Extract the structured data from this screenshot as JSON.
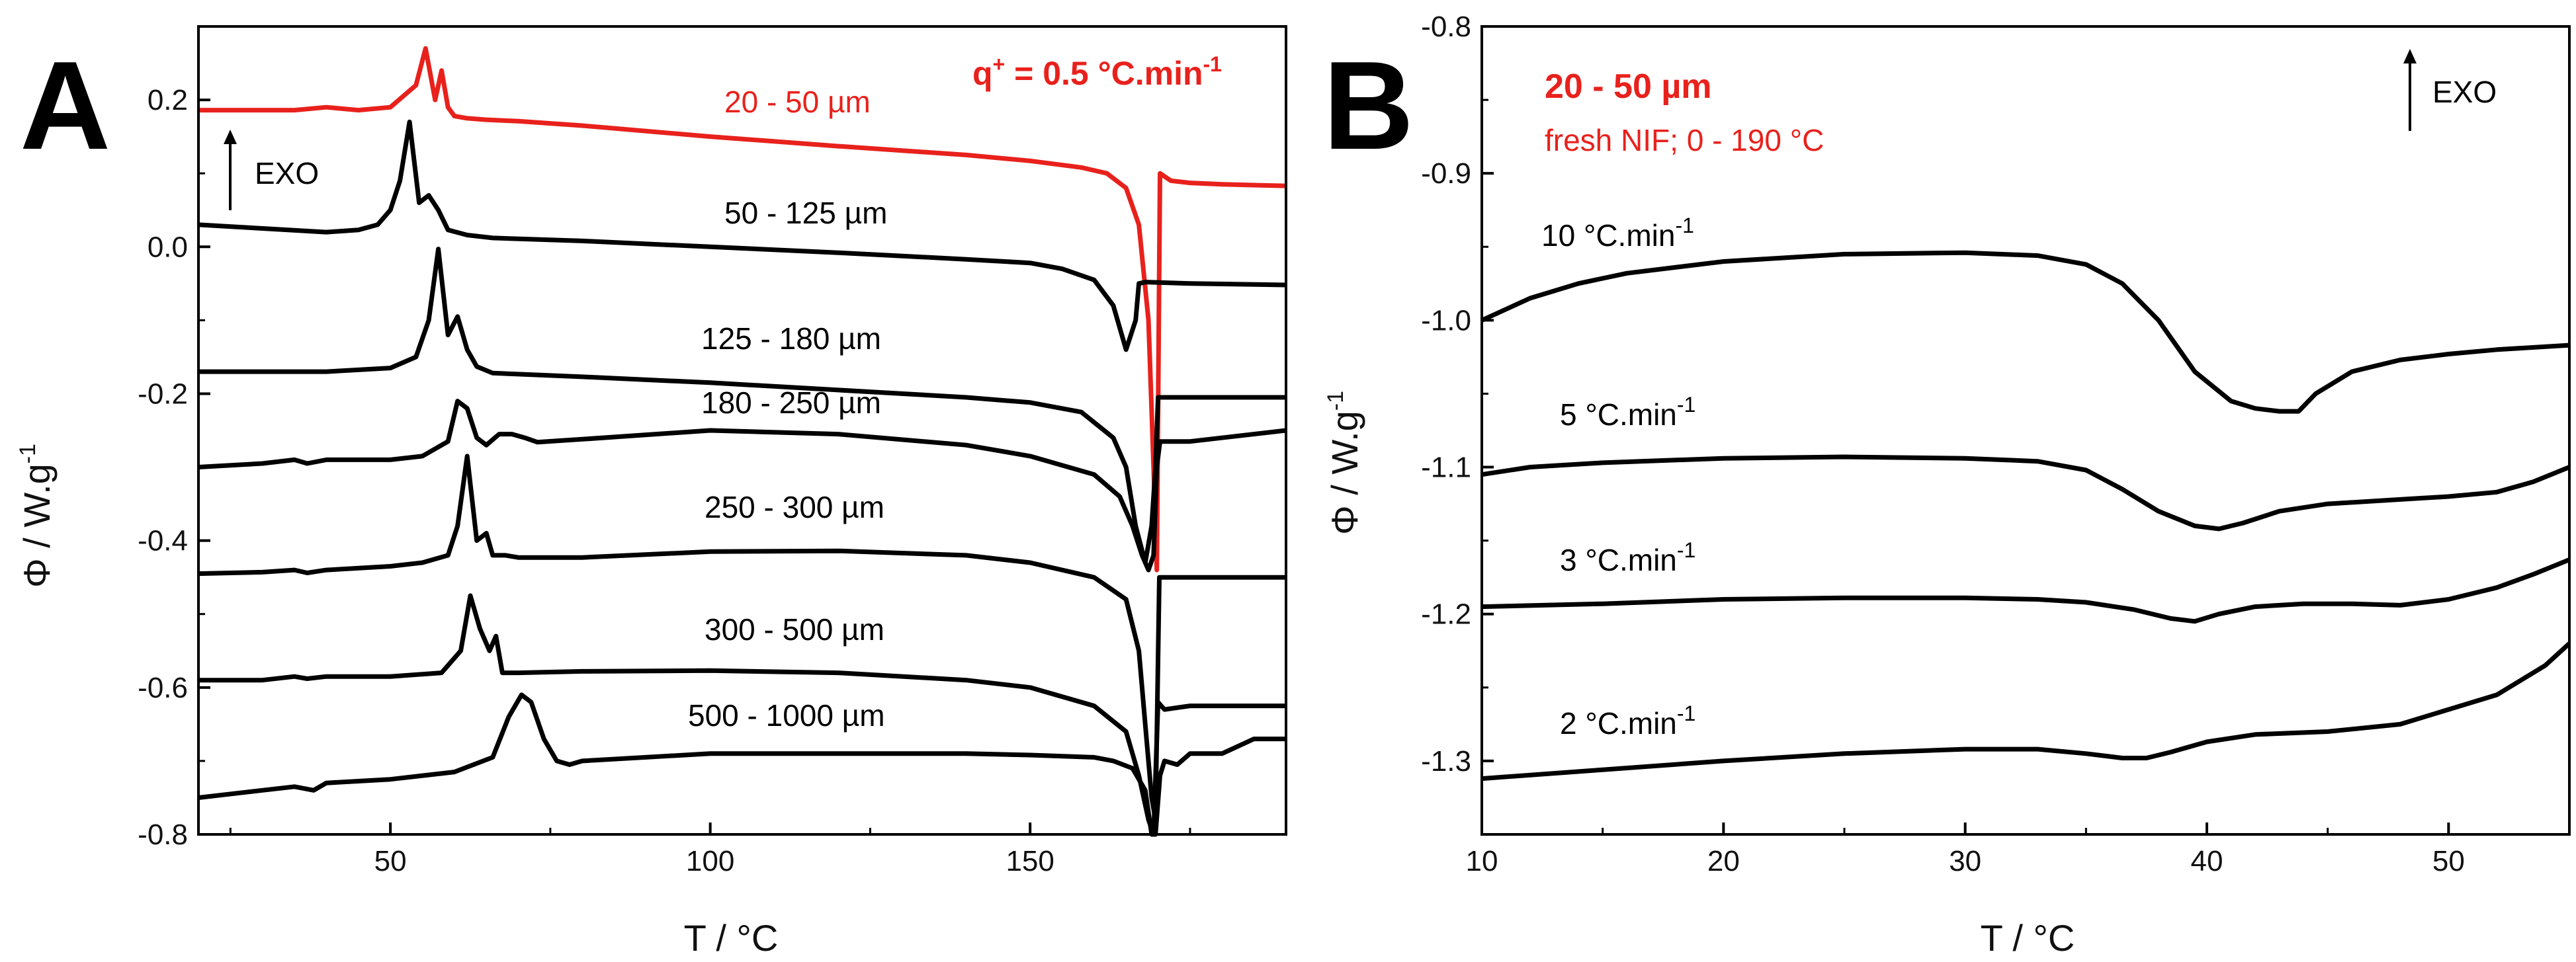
{
  "panels": [
    {
      "letter": "A",
      "xlabel": "T   /   °C",
      "ylabel": "Φ   /   W.g-1",
      "ylabel_main": "Φ   /   W.g",
      "ylabel_sup": "-1",
      "xlim": [
        20,
        190
      ],
      "ylim": [
        -0.8,
        0.3
      ],
      "xticks": [
        50,
        100,
        150
      ],
      "xtick_labels": [
        "50",
        "100",
        "150"
      ],
      "yticks": [
        0.2,
        0.0,
        -0.2,
        -0.4,
        -0.6,
        -0.8
      ],
      "ytick_labels": [
        "0.2",
        "0.0",
        "-0.2",
        "-0.4",
        "-0.6",
        "-0.8"
      ],
      "annotations": {
        "heating_rate": "q+ = 0.5 °C.min-1",
        "heating_rate_main": "q",
        "heating_rate_sup1": "+",
        "heating_rate_mid": " = 0.5 °C.min",
        "heating_rate_sup2": "-1",
        "exo": "EXO"
      },
      "series": [
        {
          "name": "20 - 50 µm",
          "label": "20 - 50 µm",
          "color": "#e8211c",
          "x": [
            20,
            25,
            30,
            35,
            40,
            45,
            50,
            54,
            55.5,
            57,
            58,
            59,
            60,
            62,
            65,
            70,
            80,
            100,
            120,
            140,
            150,
            158,
            162,
            165,
            167,
            168.5,
            169.3,
            169.8,
            170.3,
            172,
            175,
            180,
            185,
            190
          ],
          "y": [
            0.186,
            0.186,
            0.186,
            0.186,
            0.19,
            0.186,
            0.19,
            0.22,
            0.27,
            0.2,
            0.24,
            0.19,
            0.178,
            0.175,
            0.173,
            0.171,
            0.165,
            0.15,
            0.137,
            0.125,
            0.117,
            0.108,
            0.1,
            0.08,
            0.03,
            -0.1,
            -0.3,
            -0.44,
            0.1,
            0.09,
            0.087,
            0.085,
            0.084,
            0.083
          ]
        },
        {
          "name": "50 - 125 µm",
          "label": "50 - 125 µm",
          "color": "#000000",
          "x": [
            20,
            30,
            40,
            45,
            48,
            50,
            51.5,
            53,
            54.5,
            56,
            57.5,
            59,
            62,
            66,
            80,
            100,
            120,
            140,
            150,
            155,
            160,
            163,
            165,
            166.5,
            167,
            168,
            175,
            190
          ],
          "y": [
            0.03,
            0.025,
            0.02,
            0.023,
            0.03,
            0.05,
            0.09,
            0.17,
            0.06,
            0.07,
            0.05,
            0.023,
            0.016,
            0.012,
            0.008,
            0.0,
            -0.008,
            -0.017,
            -0.022,
            -0.03,
            -0.045,
            -0.08,
            -0.14,
            -0.1,
            -0.05,
            -0.048,
            -0.05,
            -0.052
          ]
        },
        {
          "name": "125 - 180 µm",
          "label": "125 - 180 µm",
          "color": "#000000",
          "x": [
            20,
            30,
            40,
            50,
            54,
            56,
            57.5,
            59,
            60.5,
            62,
            63.5,
            66,
            80,
            100,
            120,
            140,
            150,
            158,
            163,
            165,
            166.5,
            168,
            169,
            169.6,
            170,
            175,
            190
          ],
          "y": [
            -0.17,
            -0.17,
            -0.17,
            -0.165,
            -0.15,
            -0.1,
            -0.003,
            -0.12,
            -0.095,
            -0.14,
            -0.163,
            -0.172,
            -0.177,
            -0.185,
            -0.195,
            -0.205,
            -0.212,
            -0.225,
            -0.26,
            -0.3,
            -0.38,
            -0.43,
            -0.38,
            -0.3,
            -0.205,
            -0.205,
            -0.205
          ]
        },
        {
          "name": "180 - 250 µm",
          "label": "180 - 250 µm",
          "color": "#000000",
          "x": [
            20,
            30,
            35,
            37,
            40,
            50,
            55,
            59,
            60.5,
            62,
            63.5,
            65,
            67,
            69,
            71,
            73,
            80,
            100,
            120,
            140,
            150,
            160,
            164,
            166,
            167.5,
            168.5,
            169.3,
            169.8,
            170.3,
            175,
            190
          ],
          "y": [
            -0.3,
            -0.295,
            -0.29,
            -0.295,
            -0.29,
            -0.29,
            -0.285,
            -0.265,
            -0.21,
            -0.22,
            -0.26,
            -0.27,
            -0.255,
            -0.255,
            -0.26,
            -0.266,
            -0.262,
            -0.25,
            -0.255,
            -0.27,
            -0.285,
            -0.31,
            -0.34,
            -0.38,
            -0.42,
            -0.44,
            -0.42,
            -0.3,
            -0.265,
            -0.265,
            -0.25
          ]
        },
        {
          "name": "250 - 300 µm",
          "label": "250 - 300 µm",
          "color": "#000000",
          "x": [
            20,
            30,
            35,
            37,
            40,
            50,
            55,
            59,
            60.5,
            62,
            63.5,
            65,
            66,
            68,
            70,
            80,
            100,
            120,
            140,
            150,
            160,
            165,
            167,
            168,
            169,
            169.6,
            170.2,
            171,
            175,
            190
          ],
          "y": [
            -0.445,
            -0.443,
            -0.44,
            -0.444,
            -0.44,
            -0.435,
            -0.43,
            -0.42,
            -0.38,
            -0.285,
            -0.4,
            -0.39,
            -0.42,
            -0.42,
            -0.423,
            -0.423,
            -0.415,
            -0.414,
            -0.42,
            -0.43,
            -0.45,
            -0.48,
            -0.55,
            -0.65,
            -0.75,
            -0.78,
            -0.45,
            -0.45,
            -0.45,
            -0.45
          ]
        },
        {
          "name": "300 - 500 µm",
          "label": "300 - 500 µm",
          "color": "#000000",
          "x": [
            20,
            30,
            35,
            37,
            40,
            50,
            58,
            61,
            62.5,
            64,
            65.5,
            66.5,
            67.5,
            70,
            80,
            100,
            120,
            140,
            150,
            160,
            165,
            167,
            168.5,
            169.3,
            170,
            170.5,
            171,
            175,
            190
          ],
          "y": [
            -0.59,
            -0.59,
            -0.585,
            -0.588,
            -0.585,
            -0.585,
            -0.58,
            -0.55,
            -0.475,
            -0.52,
            -0.55,
            -0.53,
            -0.58,
            -0.58,
            -0.578,
            -0.577,
            -0.58,
            -0.59,
            -0.6,
            -0.625,
            -0.66,
            -0.72,
            -0.78,
            -0.8,
            -0.62,
            -0.625,
            -0.63,
            -0.625,
            -0.625
          ]
        },
        {
          "name": "500 - 1000 µm",
          "label": "500 - 1000 µm",
          "color": "#000000",
          "x": [
            20,
            30,
            35,
            38,
            40,
            50,
            60,
            66,
            68.5,
            70.5,
            72,
            74,
            76,
            78,
            80,
            100,
            120,
            140,
            150,
            160,
            163,
            166,
            168,
            169,
            169.6,
            170.3,
            171,
            173,
            175,
            180,
            185,
            190
          ],
          "y": [
            -0.75,
            -0.74,
            -0.735,
            -0.74,
            -0.73,
            -0.725,
            -0.715,
            -0.695,
            -0.64,
            -0.61,
            -0.62,
            -0.67,
            -0.7,
            -0.705,
            -0.7,
            -0.69,
            -0.69,
            -0.69,
            -0.692,
            -0.695,
            -0.7,
            -0.71,
            -0.74,
            -0.8,
            -0.8,
            -0.72,
            -0.7,
            -0.705,
            -0.69,
            -0.69,
            -0.67,
            -0.67
          ]
        }
      ]
    },
    {
      "letter": "B",
      "xlabel": "T   /   °C",
      "ylabel": "Φ   /   W.g-1",
      "ylabel_main": "Φ   /   W.g",
      "ylabel_sup": "-1",
      "xlim": [
        10,
        55
      ],
      "ylim": [
        -1.35,
        -0.8
      ],
      "xticks": [
        10,
        20,
        30,
        40,
        50
      ],
      "xtick_labels": [
        "10",
        "20",
        "30",
        "40",
        "50"
      ],
      "yticks": [
        -0.8,
        -0.9,
        -1.0,
        -1.1,
        -1.2,
        -1.3
      ],
      "ytick_labels": [
        "-0.8",
        "-0.9",
        "-1.0",
        "-1.1",
        "-1.2",
        "-1.3"
      ],
      "annotations": {
        "sample": "20 - 50 µm",
        "condition": "fresh NIF; 0 - 190 °C",
        "exo": "EXO"
      },
      "series": [
        {
          "name": "10 °C.min-1",
          "label_main": "10 °C.min",
          "label_sup": "-1",
          "color": "#000000",
          "x": [
            10,
            12,
            14,
            16,
            20,
            25,
            30,
            33,
            35,
            36.5,
            38,
            39.5,
            41,
            42,
            43,
            43.8,
            44.5,
            46,
            48,
            50,
            52,
            55
          ],
          "y": [
            -1.0,
            -0.985,
            -0.975,
            -0.968,
            -0.96,
            -0.955,
            -0.954,
            -0.956,
            -0.962,
            -0.975,
            -1.0,
            -1.035,
            -1.055,
            -1.06,
            -1.062,
            -1.062,
            -1.05,
            -1.035,
            -1.027,
            -1.023,
            -1.02,
            -1.017
          ]
        },
        {
          "name": "5 °C.min-1",
          "label_main": "5 °C.min",
          "label_sup": "-1",
          "color": "#000000",
          "x": [
            10,
            12,
            15,
            20,
            25,
            30,
            33,
            35,
            36.5,
            38,
            39.5,
            40.5,
            41.5,
            43,
            45,
            48,
            50,
            52,
            53.5,
            55
          ],
          "y": [
            -1.105,
            -1.1,
            -1.097,
            -1.094,
            -1.093,
            -1.094,
            -1.096,
            -1.102,
            -1.115,
            -1.13,
            -1.14,
            -1.142,
            -1.138,
            -1.13,
            -1.125,
            -1.122,
            -1.12,
            -1.117,
            -1.11,
            -1.1
          ]
        },
        {
          "name": "3 °C.min-1",
          "label_main": "3 °C.min",
          "label_sup": "-1",
          "color": "#000000",
          "x": [
            10,
            15,
            20,
            25,
            30,
            33,
            35,
            37,
            38.5,
            39.5,
            40.5,
            42,
            44,
            46,
            48,
            50,
            52,
            53.5,
            55
          ],
          "y": [
            -1.195,
            -1.193,
            -1.19,
            -1.189,
            -1.189,
            -1.19,
            -1.192,
            -1.197,
            -1.203,
            -1.205,
            -1.2,
            -1.195,
            -1.193,
            -1.193,
            -1.194,
            -1.19,
            -1.182,
            -1.173,
            -1.163
          ]
        },
        {
          "name": "2 °C.min-1",
          "label_main": "2 °C.min",
          "label_sup": "-1",
          "color": "#000000",
          "x": [
            10,
            15,
            20,
            25,
            30,
            33,
            35,
            36.5,
            37.5,
            38.5,
            40,
            42,
            45,
            48,
            50,
            52,
            54,
            55
          ],
          "y": [
            -1.312,
            -1.306,
            -1.3,
            -1.295,
            -1.292,
            -1.292,
            -1.295,
            -1.298,
            -1.298,
            -1.294,
            -1.287,
            -1.282,
            -1.28,
            -1.275,
            -1.265,
            -1.255,
            -1.235,
            -1.22
          ]
        }
      ]
    }
  ]
}
